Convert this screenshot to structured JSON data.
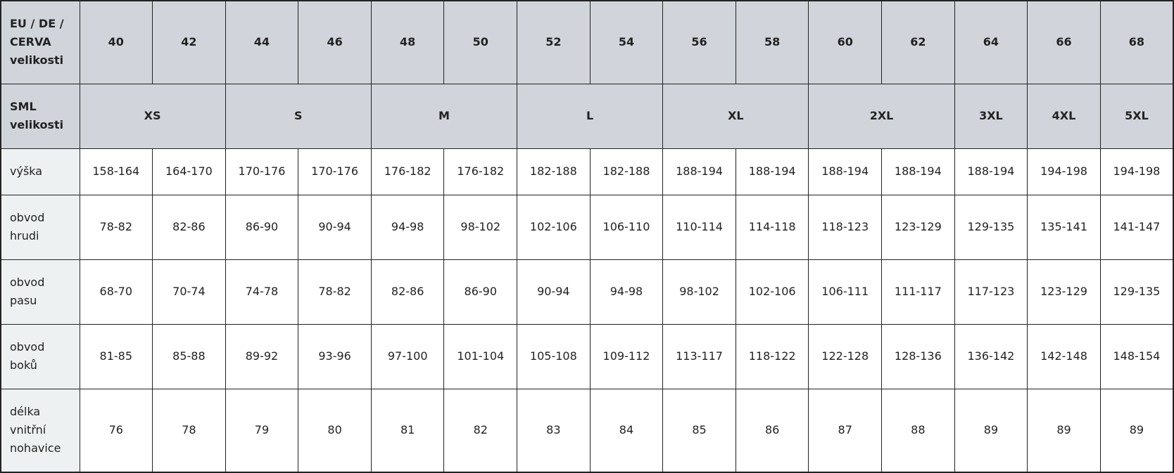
{
  "colors": {
    "header_bg": "#d1d5db",
    "label_bg": "#eef1f2",
    "border": "#222222",
    "text": "#222222"
  },
  "eu_row": {
    "label": "EU / DE / CERVA velikosti",
    "sizes": [
      "40",
      "42",
      "44",
      "46",
      "48",
      "50",
      "52",
      "54",
      "56",
      "58",
      "60",
      "62",
      "64",
      "66",
      "68"
    ]
  },
  "sml_row": {
    "label": "SML velikosti",
    "sizes": [
      {
        "label": "XS",
        "span": 2
      },
      {
        "label": "S",
        "span": 2
      },
      {
        "label": "M",
        "span": 2
      },
      {
        "label": "L",
        "span": 2
      },
      {
        "label": "XL",
        "span": 2
      },
      {
        "label": "2XL",
        "span": 2
      },
      {
        "label": "3XL",
        "span": 1
      },
      {
        "label": "4XL",
        "span": 1
      },
      {
        "label": "5XL",
        "span": 1
      }
    ]
  },
  "rows": [
    {
      "label": "výška",
      "values": [
        "158-164",
        "164-170",
        "170-176",
        "170-176",
        "176-182",
        "176-182",
        "182-188",
        "182-188",
        "188-194",
        "188-194",
        "188-194",
        "188-194",
        "188-194",
        "194-198",
        "194-198"
      ]
    },
    {
      "label": "obvod hrudi",
      "values": [
        "78-82",
        "82-86",
        "86-90",
        "90-94",
        "94-98",
        "98-102",
        "102-106",
        "106-110",
        "110-114",
        "114-118",
        "118-123",
        "123-129",
        "129-135",
        "135-141",
        "141-147"
      ]
    },
    {
      "label": "obvod pasu",
      "values": [
        "68-70",
        "70-74",
        "74-78",
        "78-82",
        "82-86",
        "86-90",
        "90-94",
        "94-98",
        "98-102",
        "102-106",
        "106-111",
        "111-117",
        "117-123",
        "123-129",
        "129-135"
      ]
    },
    {
      "label": "obvod boků",
      "values": [
        "81-85",
        "85-88",
        "89-92",
        "93-96",
        "97-100",
        "101-104",
        "105-108",
        "109-112",
        "113-117",
        "118-122",
        "122-128",
        "128-136",
        "136-142",
        "142-148",
        "148-154"
      ]
    },
    {
      "label": "délka vnitřní nohavice",
      "values": [
        "76",
        "78",
        "79",
        "80",
        "81",
        "82",
        "83",
        "84",
        "85",
        "86",
        "87",
        "88",
        "89",
        "89",
        "89"
      ]
    }
  ]
}
